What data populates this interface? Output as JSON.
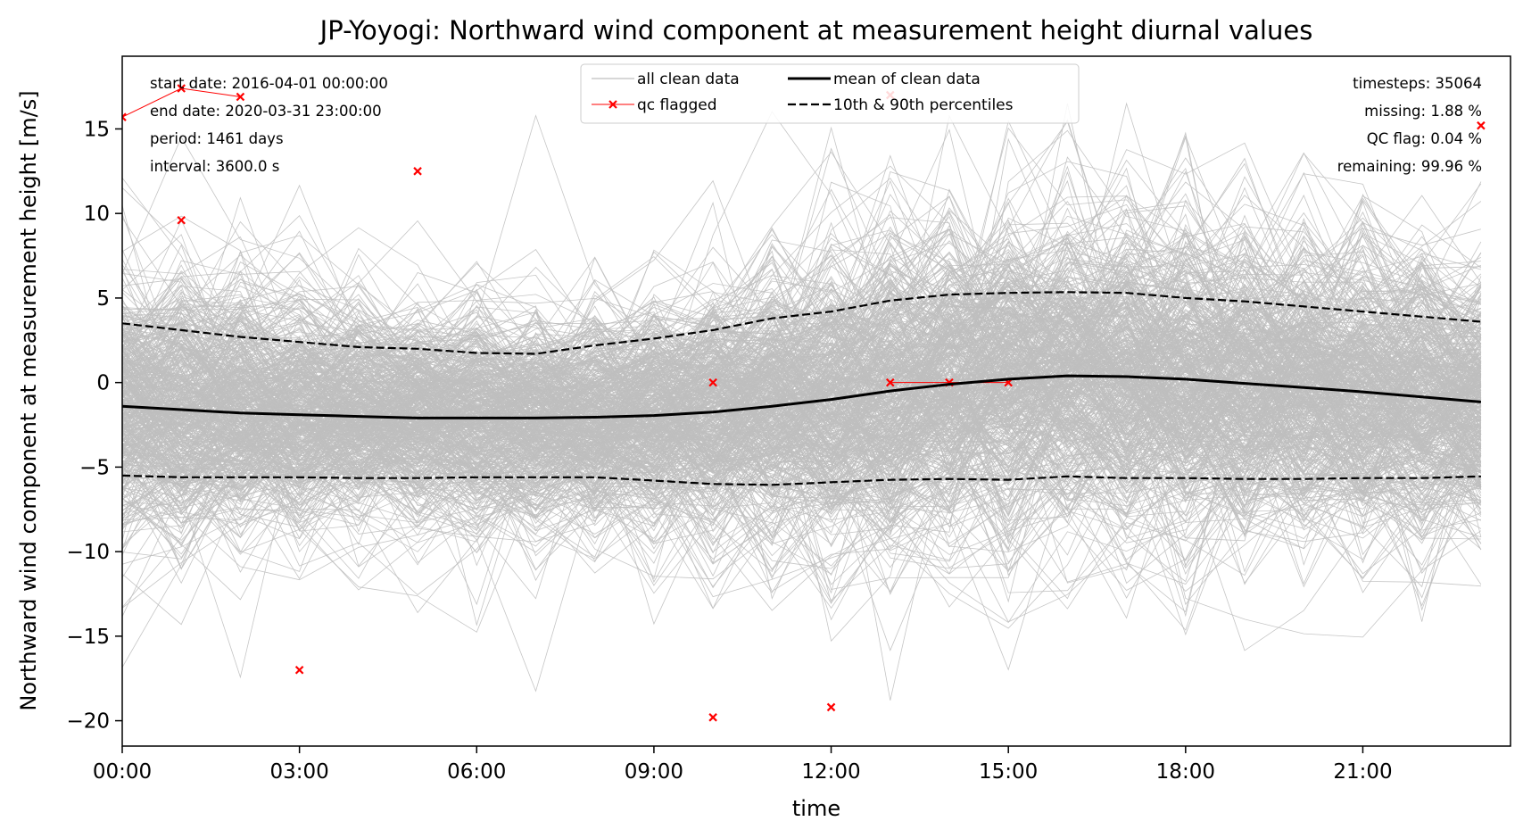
{
  "chart_data": {
    "type": "line",
    "title": "JP-Yoyogi: Northward wind component at measurement height diurnal values",
    "xlabel": "time",
    "ylabel": "Northward wind component at measurement height [m/s]",
    "xlim": [
      0,
      23.5
    ],
    "ylim": [
      -21.5,
      19.3
    ],
    "x_ticks": [
      {
        "value": 0,
        "label": "00:00"
      },
      {
        "value": 3,
        "label": "03:00"
      },
      {
        "value": 6,
        "label": "06:00"
      },
      {
        "value": 9,
        "label": "09:00"
      },
      {
        "value": 12,
        "label": "12:00"
      },
      {
        "value": 15,
        "label": "15:00"
      },
      {
        "value": 18,
        "label": "18:00"
      },
      {
        "value": 21,
        "label": "21:00"
      }
    ],
    "y_ticks": [
      {
        "value": 15,
        "label": "15"
      },
      {
        "value": 10,
        "label": "10"
      },
      {
        "value": 5,
        "label": "5"
      },
      {
        "value": 0,
        "label": "0"
      },
      {
        "value": -5,
        "label": "−5"
      },
      {
        "value": -10,
        "label": "−10"
      },
      {
        "value": -15,
        "label": "−15"
      },
      {
        "value": -20,
        "label": "−20"
      }
    ],
    "hours": [
      0,
      1,
      2,
      3,
      4,
      5,
      6,
      7,
      8,
      9,
      10,
      11,
      12,
      13,
      14,
      15,
      16,
      17,
      18,
      19,
      20,
      21,
      22,
      23
    ],
    "series": [
      {
        "name": "mean of clean data",
        "color": "#000000",
        "style": "solid",
        "values": [
          -1.4,
          -1.6,
          -1.8,
          -1.9,
          -2.0,
          -2.1,
          -2.1,
          -2.1,
          -2.05,
          -1.95,
          -1.75,
          -1.4,
          -1.0,
          -0.5,
          -0.1,
          0.2,
          0.4,
          0.35,
          0.2,
          -0.05,
          -0.3,
          -0.55,
          -0.85,
          -1.15
        ]
      },
      {
        "name": "10th & 90th percentiles",
        "color": "#000000",
        "style": "dashed",
        "values": [
          3.5,
          3.1,
          2.7,
          2.4,
          2.1,
          2.0,
          1.75,
          1.7,
          2.2,
          2.6,
          3.1,
          3.8,
          4.2,
          4.85,
          5.2,
          5.3,
          5.35,
          5.3,
          5.0,
          4.8,
          4.5,
          4.2,
          3.9,
          3.6
        ]
      },
      {
        "name": "10th & 90th percentiles (low)",
        "color": "#000000",
        "style": "dashed",
        "values": [
          -5.5,
          -5.6,
          -5.6,
          -5.6,
          -5.65,
          -5.65,
          -5.6,
          -5.6,
          -5.6,
          -5.8,
          -6.0,
          -6.05,
          -5.9,
          -5.75,
          -5.7,
          -5.75,
          -5.55,
          -5.65,
          -5.65,
          -5.7,
          -5.7,
          -5.65,
          -5.65,
          -5.55
        ]
      }
    ],
    "clean_data": {
      "name": "all clean data",
      "color": "#bfbfbf",
      "core_p10": [
        -5.5,
        -5.6,
        -5.6,
        -5.6,
        -5.65,
        -5.65,
        -5.6,
        -5.6,
        -5.6,
        -5.8,
        -6.0,
        -6.05,
        -5.9,
        -5.75,
        -5.7,
        -5.75,
        -5.55,
        -5.65,
        -5.65,
        -5.7,
        -5.7,
        -5.65,
        -5.65,
        -5.55
      ],
      "core_p90": [
        3.5,
        3.1,
        2.7,
        2.4,
        2.1,
        2.0,
        1.75,
        1.7,
        2.2,
        2.6,
        3.1,
        3.8,
        4.2,
        4.85,
        5.2,
        5.3,
        5.35,
        5.3,
        5.0,
        4.8,
        4.5,
        4.2,
        3.9,
        3.6
      ]
    },
    "qc_flagged": {
      "name": "qc flagged",
      "color": "#ff0000",
      "points": [
        {
          "x": 0,
          "y": 15.7
        },
        {
          "x": 1,
          "y": 17.4
        },
        {
          "x": 2,
          "y": 16.9
        },
        {
          "x": 1,
          "y": 9.6
        },
        {
          "x": 5,
          "y": 12.5
        },
        {
          "x": 3,
          "y": -17.0
        },
        {
          "x": 10,
          "y": 0.0
        },
        {
          "x": 10,
          "y": -19.8
        },
        {
          "x": 12,
          "y": -19.2
        },
        {
          "x": 13,
          "y": 17.0
        },
        {
          "x": 13,
          "y": 0.0
        },
        {
          "x": 14,
          "y": 0.0
        },
        {
          "x": 15,
          "y": 0.0
        },
        {
          "x": 23,
          "y": 15.2
        }
      ],
      "connected_runs": [
        [
          {
            "x": 0,
            "y": 15.7
          },
          {
            "x": 1,
            "y": 17.4
          },
          {
            "x": 2,
            "y": 16.9
          }
        ],
        [
          {
            "x": 13,
            "y": 0.0
          },
          {
            "x": 14,
            "y": 0.0
          },
          {
            "x": 15,
            "y": 0.0
          }
        ]
      ]
    },
    "legend": {
      "placement": "top-center",
      "entries": [
        {
          "label": "all clean data",
          "kind": "clean"
        },
        {
          "label": "qc flagged",
          "kind": "qc"
        },
        {
          "label": "mean of clean data",
          "kind": "mean"
        },
        {
          "label": "10th & 90th percentiles",
          "kind": "pct"
        }
      ]
    },
    "stats_left": [
      "start date: 2016-04-01 00:00:00",
      "end date: 2020-03-31 23:00:00",
      "period: 1461 days",
      "interval: 3600.0 s"
    ],
    "stats_right": [
      "timesteps: 35064",
      "missing: 1.88 %",
      "QC flag: 0.04 %",
      "remaining: 99.96 %"
    ],
    "grid": false
  }
}
